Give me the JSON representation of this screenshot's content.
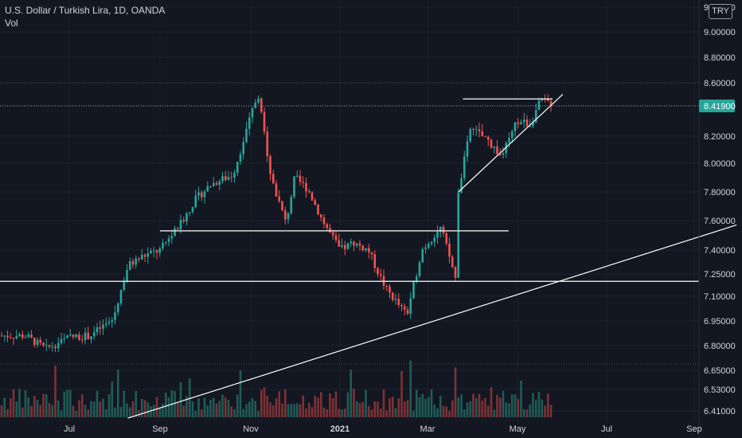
{
  "header": {
    "symbol_title": "U.S. Dollar / Turkish Lira, 1D, OANDA",
    "volume_label": "Vol",
    "currency_badge": "TRY"
  },
  "colors": {
    "background": "#131722",
    "up": "#26a69a",
    "down": "#ef5350",
    "up_volume": "#1f5c57",
    "down_volume": "#7e3235",
    "drawing": "#ffffff",
    "price_label_bg": "#26a69a"
  },
  "chart_data": {
    "type": "candlestick",
    "title": "U.S. Dollar / Turkish Lira, 1D, OANDA",
    "x_tick_labels": [
      "Jul",
      "Sep",
      "Nov",
      "2021",
      "Mar",
      "May",
      "Jul",
      "Sep"
    ],
    "y_tick_labels": [
      "9.20000",
      "9.00000",
      "8.80000",
      "8.60000",
      "8.40000",
      "8.20000",
      "8.00000",
      "7.80000",
      "7.60000",
      "7.40000",
      "7.25000",
      "7.10000",
      "6.95000",
      "6.80000",
      "6.65000",
      "6.53000",
      "6.41000"
    ],
    "y_scale": "log",
    "ylim": [
      6.35,
      9.3
    ],
    "last_price_label": "8.41900",
    "last_price": 8.419,
    "grid": true,
    "volume_pane": true,
    "price_path_keypoints": [
      [
        "2020-06-01",
        6.86
      ],
      [
        "2020-06-15",
        6.78
      ],
      [
        "2020-07-01",
        6.85
      ],
      [
        "2020-07-15",
        6.86
      ],
      [
        "2020-07-31",
        6.96
      ],
      [
        "2020-08-10",
        7.3
      ],
      [
        "2020-08-20",
        7.36
      ],
      [
        "2020-09-01",
        7.4
      ],
      [
        "2020-09-15",
        7.58
      ],
      [
        "2020-09-25",
        7.75
      ],
      [
        "2020-10-05",
        7.85
      ],
      [
        "2020-10-20",
        7.92
      ],
      [
        "2020-11-06",
        8.5
      ],
      [
        "2020-11-15",
        7.9
      ],
      [
        "2020-11-25",
        7.58
      ],
      [
        "2020-12-01",
        7.9
      ],
      [
        "2020-12-10",
        7.82
      ],
      [
        "2020-12-20",
        7.6
      ],
      [
        "2021-01-01",
        7.4
      ],
      [
        "2021-01-10",
        7.45
      ],
      [
        "2021-01-20",
        7.4
      ],
      [
        "2021-02-01",
        7.15
      ],
      [
        "2021-02-15",
        6.98
      ],
      [
        "2021-02-25",
        7.4
      ],
      [
        "2021-03-10",
        7.55
      ],
      [
        "2021-03-20",
        7.22
      ],
      [
        "2021-03-22",
        7.8
      ],
      [
        "2021-03-30",
        8.25
      ],
      [
        "2021-04-10",
        8.18
      ],
      [
        "2021-04-20",
        8.05
      ],
      [
        "2021-05-01",
        8.3
      ],
      [
        "2021-05-10",
        8.28
      ],
      [
        "2021-05-17",
        8.45
      ],
      [
        "2021-05-25",
        8.42
      ]
    ],
    "drawings": [
      {
        "type": "horizontal_line",
        "price": 7.2
      },
      {
        "type": "horizontal_segment",
        "price": 7.53,
        "from": "2020-09-01",
        "to": "2021-04-25"
      },
      {
        "type": "horizontal_segment",
        "price": 8.46,
        "from": "2021-03-25",
        "to": "2021-05-25"
      },
      {
        "type": "trendline",
        "from": [
          "2021-03-22",
          7.8
        ],
        "to": [
          "2021-06-01",
          8.5
        ]
      },
      {
        "type": "trendline",
        "from": [
          "2020-08-10",
          6.37
        ],
        "to": [
          "2021-10-01",
          7.57
        ]
      }
    ]
  }
}
